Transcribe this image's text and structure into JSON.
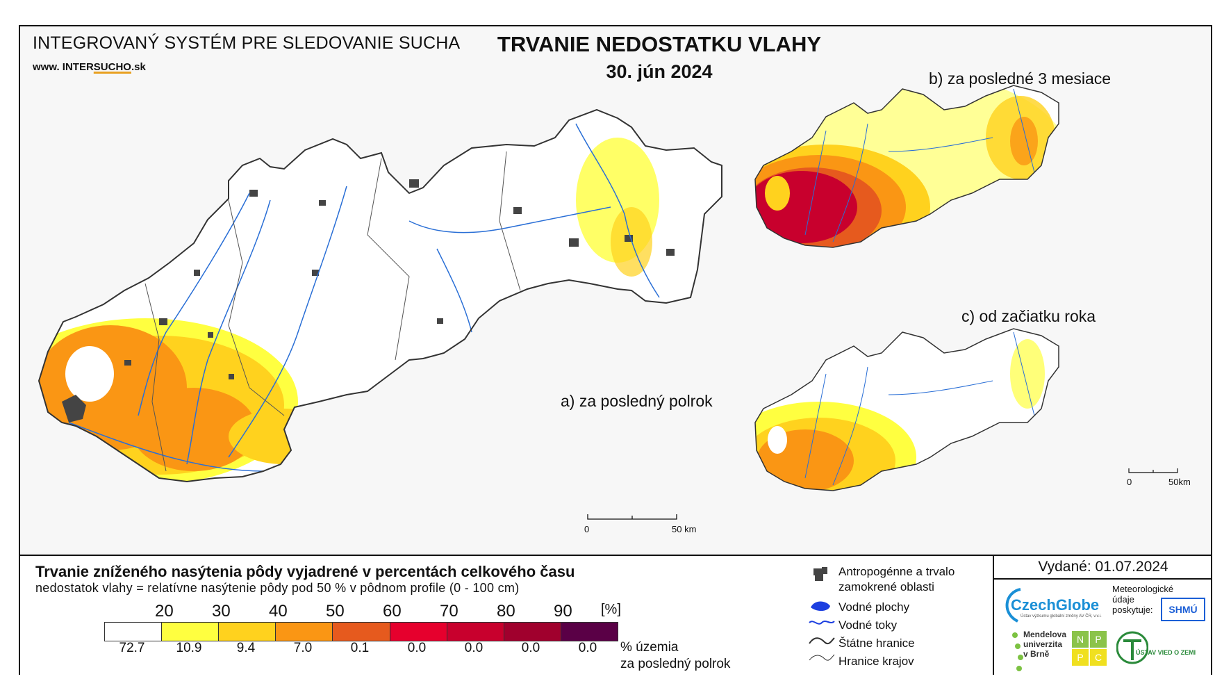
{
  "header": {
    "system_title": "INTEGROVANÝ SYSTÉM PRE SLEDOVANIE SUCHA",
    "url_prefix": "www. INTER",
    "url_mid": "SUCHO",
    "url_suffix": ".sk",
    "main_title": "TRVANIE NEDOSTATKU VLAHY",
    "date": "30. jún 2024"
  },
  "panels": {
    "a": {
      "label": "a) za posledný polrok"
    },
    "b": {
      "label": "b) za posledné 3 mesiace"
    },
    "c": {
      "label": "c) od začiatku roka"
    }
  },
  "scales": {
    "main": {
      "start": "0",
      "end": "50 km"
    },
    "inset": {
      "start": "0",
      "end": "50km"
    }
  },
  "legend": {
    "title": "Trvanie zníženého nasýtenia pôdy vyjadrené v percentách celkového času",
    "subtitle": "nedostatok vlahy = relatívne nasýtenie pôdy pod 50 % v pôdnom profile (0 - 100 cm)",
    "thresholds": [
      "20",
      "30",
      "40",
      "50",
      "60",
      "70",
      "80",
      "90"
    ],
    "unit": "[%]",
    "colors": [
      "#ffffff",
      "#ffff40",
      "#ffd21e",
      "#fa9614",
      "#e65a1e",
      "#e6002d",
      "#c8002d",
      "#a0002d",
      "#5a0046"
    ],
    "percentages": [
      "72.7",
      "10.9",
      "9.4",
      "7.0",
      "0.1",
      "0.0",
      "0.0",
      "0.0",
      "0.0"
    ],
    "percent_label_1": "% územia",
    "percent_label_2": "za posledný polrok"
  },
  "symbols": [
    {
      "icon": "urban-area-icon",
      "label_1": "Antropogénne a trvalo",
      "label_2": "zamokrené oblasti"
    },
    {
      "icon": "water-body-icon",
      "label_1": "Vodné plochy"
    },
    {
      "icon": "river-icon",
      "label_1": "Vodné toky"
    },
    {
      "icon": "state-border-icon",
      "label_1": "Štátne hranice"
    },
    {
      "icon": "region-border-icon",
      "label_1": "Hranice krajov"
    }
  ],
  "issuer": {
    "issued": "Vydané: 01.07.2024",
    "czechglobe": "CzechGlobe",
    "czechglobe_sub": "Ústav výzkumu globální změny AV ČR, v.v.i.",
    "meteo_1": "Meteorologické",
    "meteo_2": "údaje",
    "meteo_3": "poskytuje:",
    "shmu": "SHMÚ",
    "mendel_1": "Mendelova",
    "mendel_2": "univerzita",
    "mendel_3": "v Brně",
    "nppc": [
      "N",
      "P",
      "P",
      "C"
    ],
    "uvz": "ÚSTAV VIED O ZEMI"
  }
}
